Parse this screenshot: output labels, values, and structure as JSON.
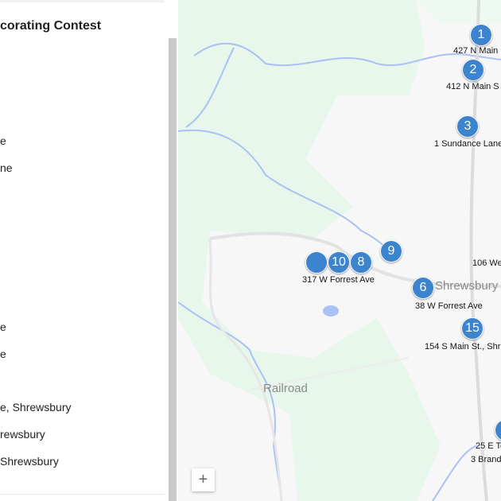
{
  "panel": {
    "title": "corating Contest",
    "items": [
      "e",
      "ne",
      "e",
      "e",
      "e, Shrewsbury",
      "rewsbury",
      " Shrewsbury"
    ]
  },
  "map": {
    "towns": [
      "Shrewsbury",
      "Railroad"
    ],
    "markers": [
      {
        "num": "1",
        "label": "427 N Main"
      },
      {
        "num": "2",
        "label": "412 N Main S"
      },
      {
        "num": "3",
        "label": "1 Sundance Lane"
      },
      {
        "num": "9",
        "label": ""
      },
      {
        "num": "10",
        "label": ""
      },
      {
        "num": "8",
        "label": "317 W Forrest Ave"
      },
      {
        "num": "",
        "label": "106 We"
      },
      {
        "num": "6",
        "label": "38 W Forrest Ave"
      },
      {
        "num": "15",
        "label": "154 S Main St., Shr"
      },
      {
        "num": "",
        "label": "25 E To"
      },
      {
        "num": "",
        "label": "3 Brand"
      }
    ],
    "zoom_in": "+",
    "colors": {
      "marker": "#3d84cf",
      "park": "#e8f7ec",
      "water": "#a9c1f5"
    }
  }
}
